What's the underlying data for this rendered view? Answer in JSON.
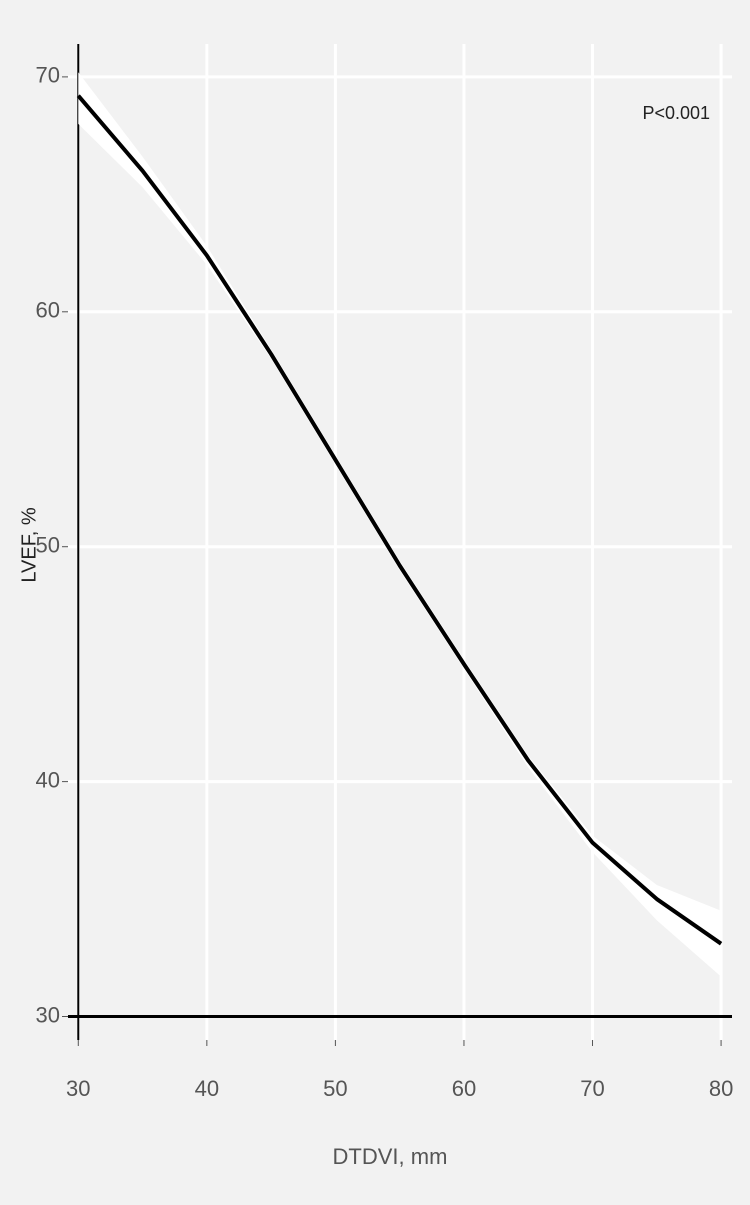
{
  "chart_data": {
    "type": "line",
    "x": [
      30,
      35,
      40,
      45,
      50,
      55,
      60,
      65,
      70,
      75,
      80
    ],
    "values": [
      69.2,
      66.0,
      62.4,
      58.2,
      53.7,
      49.2,
      45.0,
      40.9,
      37.4,
      35.0,
      33.1
    ],
    "upper": [
      70.2,
      66.6,
      62.8,
      58.4,
      53.9,
      49.4,
      45.2,
      41.1,
      37.7,
      35.6,
      34.5
    ],
    "lower": [
      68.0,
      65.3,
      62.0,
      58.0,
      53.5,
      49.0,
      44.8,
      40.6,
      37.0,
      34.1,
      31.7
    ],
    "color": "#000000",
    "band_color": "#ffffff",
    "xlim": [
      29.2,
      80.85
    ],
    "ylim": [
      29.0,
      71.4
    ],
    "xticks": [
      30,
      40,
      50,
      60,
      70,
      80
    ],
    "yticks": [
      30,
      40,
      50,
      60,
      70
    ],
    "grid": true,
    "x_label": "DTDVI, mm",
    "y_label": "LVEF, %",
    "annotation": "P<0.001"
  }
}
